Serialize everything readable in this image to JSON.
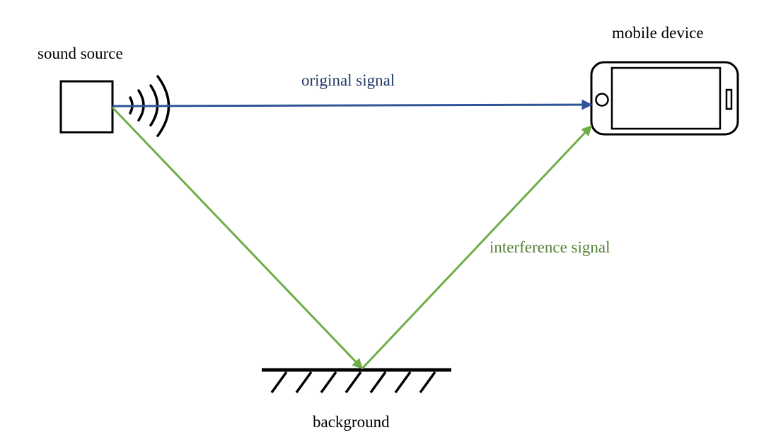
{
  "labels": {
    "sound_source": "sound source",
    "mobile_device": "mobile device",
    "original_signal": "original signal",
    "interference_signal": "interference signal",
    "background": "background"
  },
  "colors": {
    "text": "#000000",
    "outline": "#000000",
    "original_signal": "#2f5597",
    "original_signal_label": "#1f3864",
    "interference_signal": "#70ad47",
    "interference_signal_label": "#538135"
  },
  "icons": {
    "source": "speaker-box-icon",
    "waves": "sound-wave-icon",
    "device": "smartphone-icon",
    "ground": "hatched-ground-icon"
  }
}
